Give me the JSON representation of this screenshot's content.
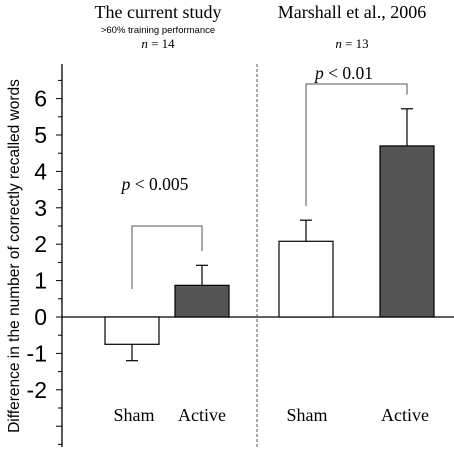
{
  "chart_data": {
    "type": "bar",
    "ylabel": "Difference in the number of correctly recalled words",
    "ylim": [
      -3,
      7
    ],
    "yticks": [
      -2,
      -1,
      0,
      1,
      2,
      3,
      4,
      5,
      6
    ],
    "grid": false,
    "colors": {
      "sham": "#ffffff",
      "active": "#555555",
      "stroke": "#000000"
    },
    "panels": [
      {
        "title": "The current study",
        "subtitle": ">60% training performance",
        "n_label": "n = 14",
        "categories": [
          "Sham",
          "Active"
        ],
        "values": [
          -0.75,
          0.87
        ],
        "errors": [
          0.45,
          0.55
        ],
        "significance": "p < 0.005"
      },
      {
        "title": "Marshall et al., 2006",
        "subtitle": "",
        "n_label": "n = 13",
        "categories": [
          "Sham",
          "Active"
        ],
        "values": [
          2.08,
          4.7
        ],
        "errors": [
          0.58,
          1.02
        ],
        "significance": "p < 0.01"
      }
    ]
  }
}
